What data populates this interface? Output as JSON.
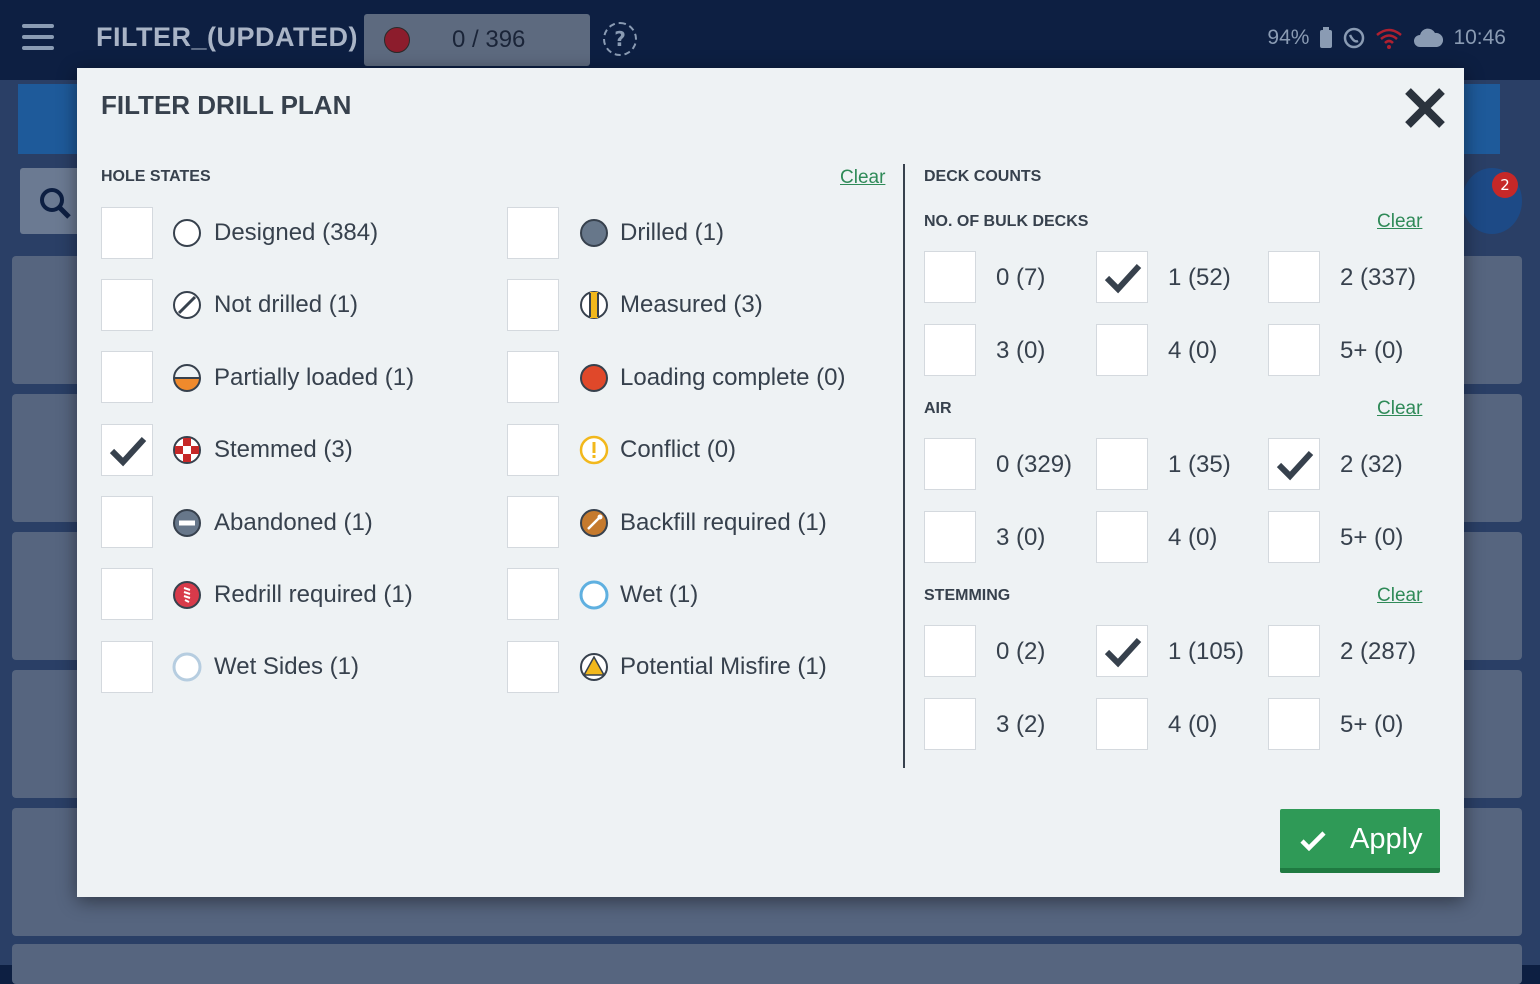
{
  "topbar": {
    "title": "FILTER_(UPDATED)",
    "counter": "0 / 396",
    "battery": "94%",
    "time": "10:46"
  },
  "background": {
    "notification_count": "2"
  },
  "modal": {
    "title": "FILTER DRILL PLAN",
    "hole_states": {
      "heading": "HOLE STATES",
      "clear": "Clear",
      "items": [
        {
          "label": "Designed (384)",
          "icon": "designed-icon",
          "checked": false
        },
        {
          "label": "Not drilled (1)",
          "icon": "not-drilled-icon",
          "checked": false
        },
        {
          "label": "Partially loaded (1)",
          "icon": "partially-loaded-icon",
          "checked": false
        },
        {
          "label": "Stemmed (3)",
          "icon": "stemmed-icon",
          "checked": true
        },
        {
          "label": "Abandoned (1)",
          "icon": "abandoned-icon",
          "checked": false
        },
        {
          "label": "Redrill required (1)",
          "icon": "redrill-icon",
          "checked": false
        },
        {
          "label": "Wet Sides (1)",
          "icon": "wet-sides-icon",
          "checked": false
        },
        {
          "label": "Drilled (1)",
          "icon": "drilled-icon",
          "checked": false
        },
        {
          "label": "Measured (3)",
          "icon": "measured-icon",
          "checked": false
        },
        {
          "label": "Loading complete (0)",
          "icon": "loading-complete-icon",
          "checked": false
        },
        {
          "label": "Conflict (0)",
          "icon": "conflict-icon",
          "checked": false
        },
        {
          "label": "Backfill required (1)",
          "icon": "backfill-icon",
          "checked": false
        },
        {
          "label": "Wet (1)",
          "icon": "wet-icon",
          "checked": false
        },
        {
          "label": "Potential Misfire (1)",
          "icon": "misfire-icon",
          "checked": false
        }
      ]
    },
    "deck_counts": {
      "heading": "DECK COUNTS",
      "groups": [
        {
          "heading": "NO. OF BULK DECKS",
          "clear": "Clear",
          "options": [
            {
              "label": "0 (7)",
              "checked": false
            },
            {
              "label": "1 (52)",
              "checked": true
            },
            {
              "label": "2 (337)",
              "checked": false
            },
            {
              "label": "3 (0)",
              "checked": false
            },
            {
              "label": "4 (0)",
              "checked": false
            },
            {
              "label": "5+ (0)",
              "checked": false
            }
          ]
        },
        {
          "heading": "AIR",
          "clear": "Clear",
          "options": [
            {
              "label": "0 (329)",
              "checked": false
            },
            {
              "label": "1 (35)",
              "checked": false
            },
            {
              "label": "2 (32)",
              "checked": true
            },
            {
              "label": "3 (0)",
              "checked": false
            },
            {
              "label": "4 (0)",
              "checked": false
            },
            {
              "label": "5+ (0)",
              "checked": false
            }
          ]
        },
        {
          "heading": "STEMMING",
          "clear": "Clear",
          "options": [
            {
              "label": "0 (2)",
              "checked": false
            },
            {
              "label": "1 (105)",
              "checked": true
            },
            {
              "label": "2 (287)",
              "checked": false
            },
            {
              "label": "3 (2)",
              "checked": false
            },
            {
              "label": "4 (0)",
              "checked": false
            },
            {
              "label": "5+ (0)",
              "checked": false
            }
          ]
        }
      ]
    },
    "apply_label": "Apply"
  },
  "colors": {
    "accent": "#2f9a57",
    "text": "#37414d",
    "link": "#2f8a58"
  }
}
